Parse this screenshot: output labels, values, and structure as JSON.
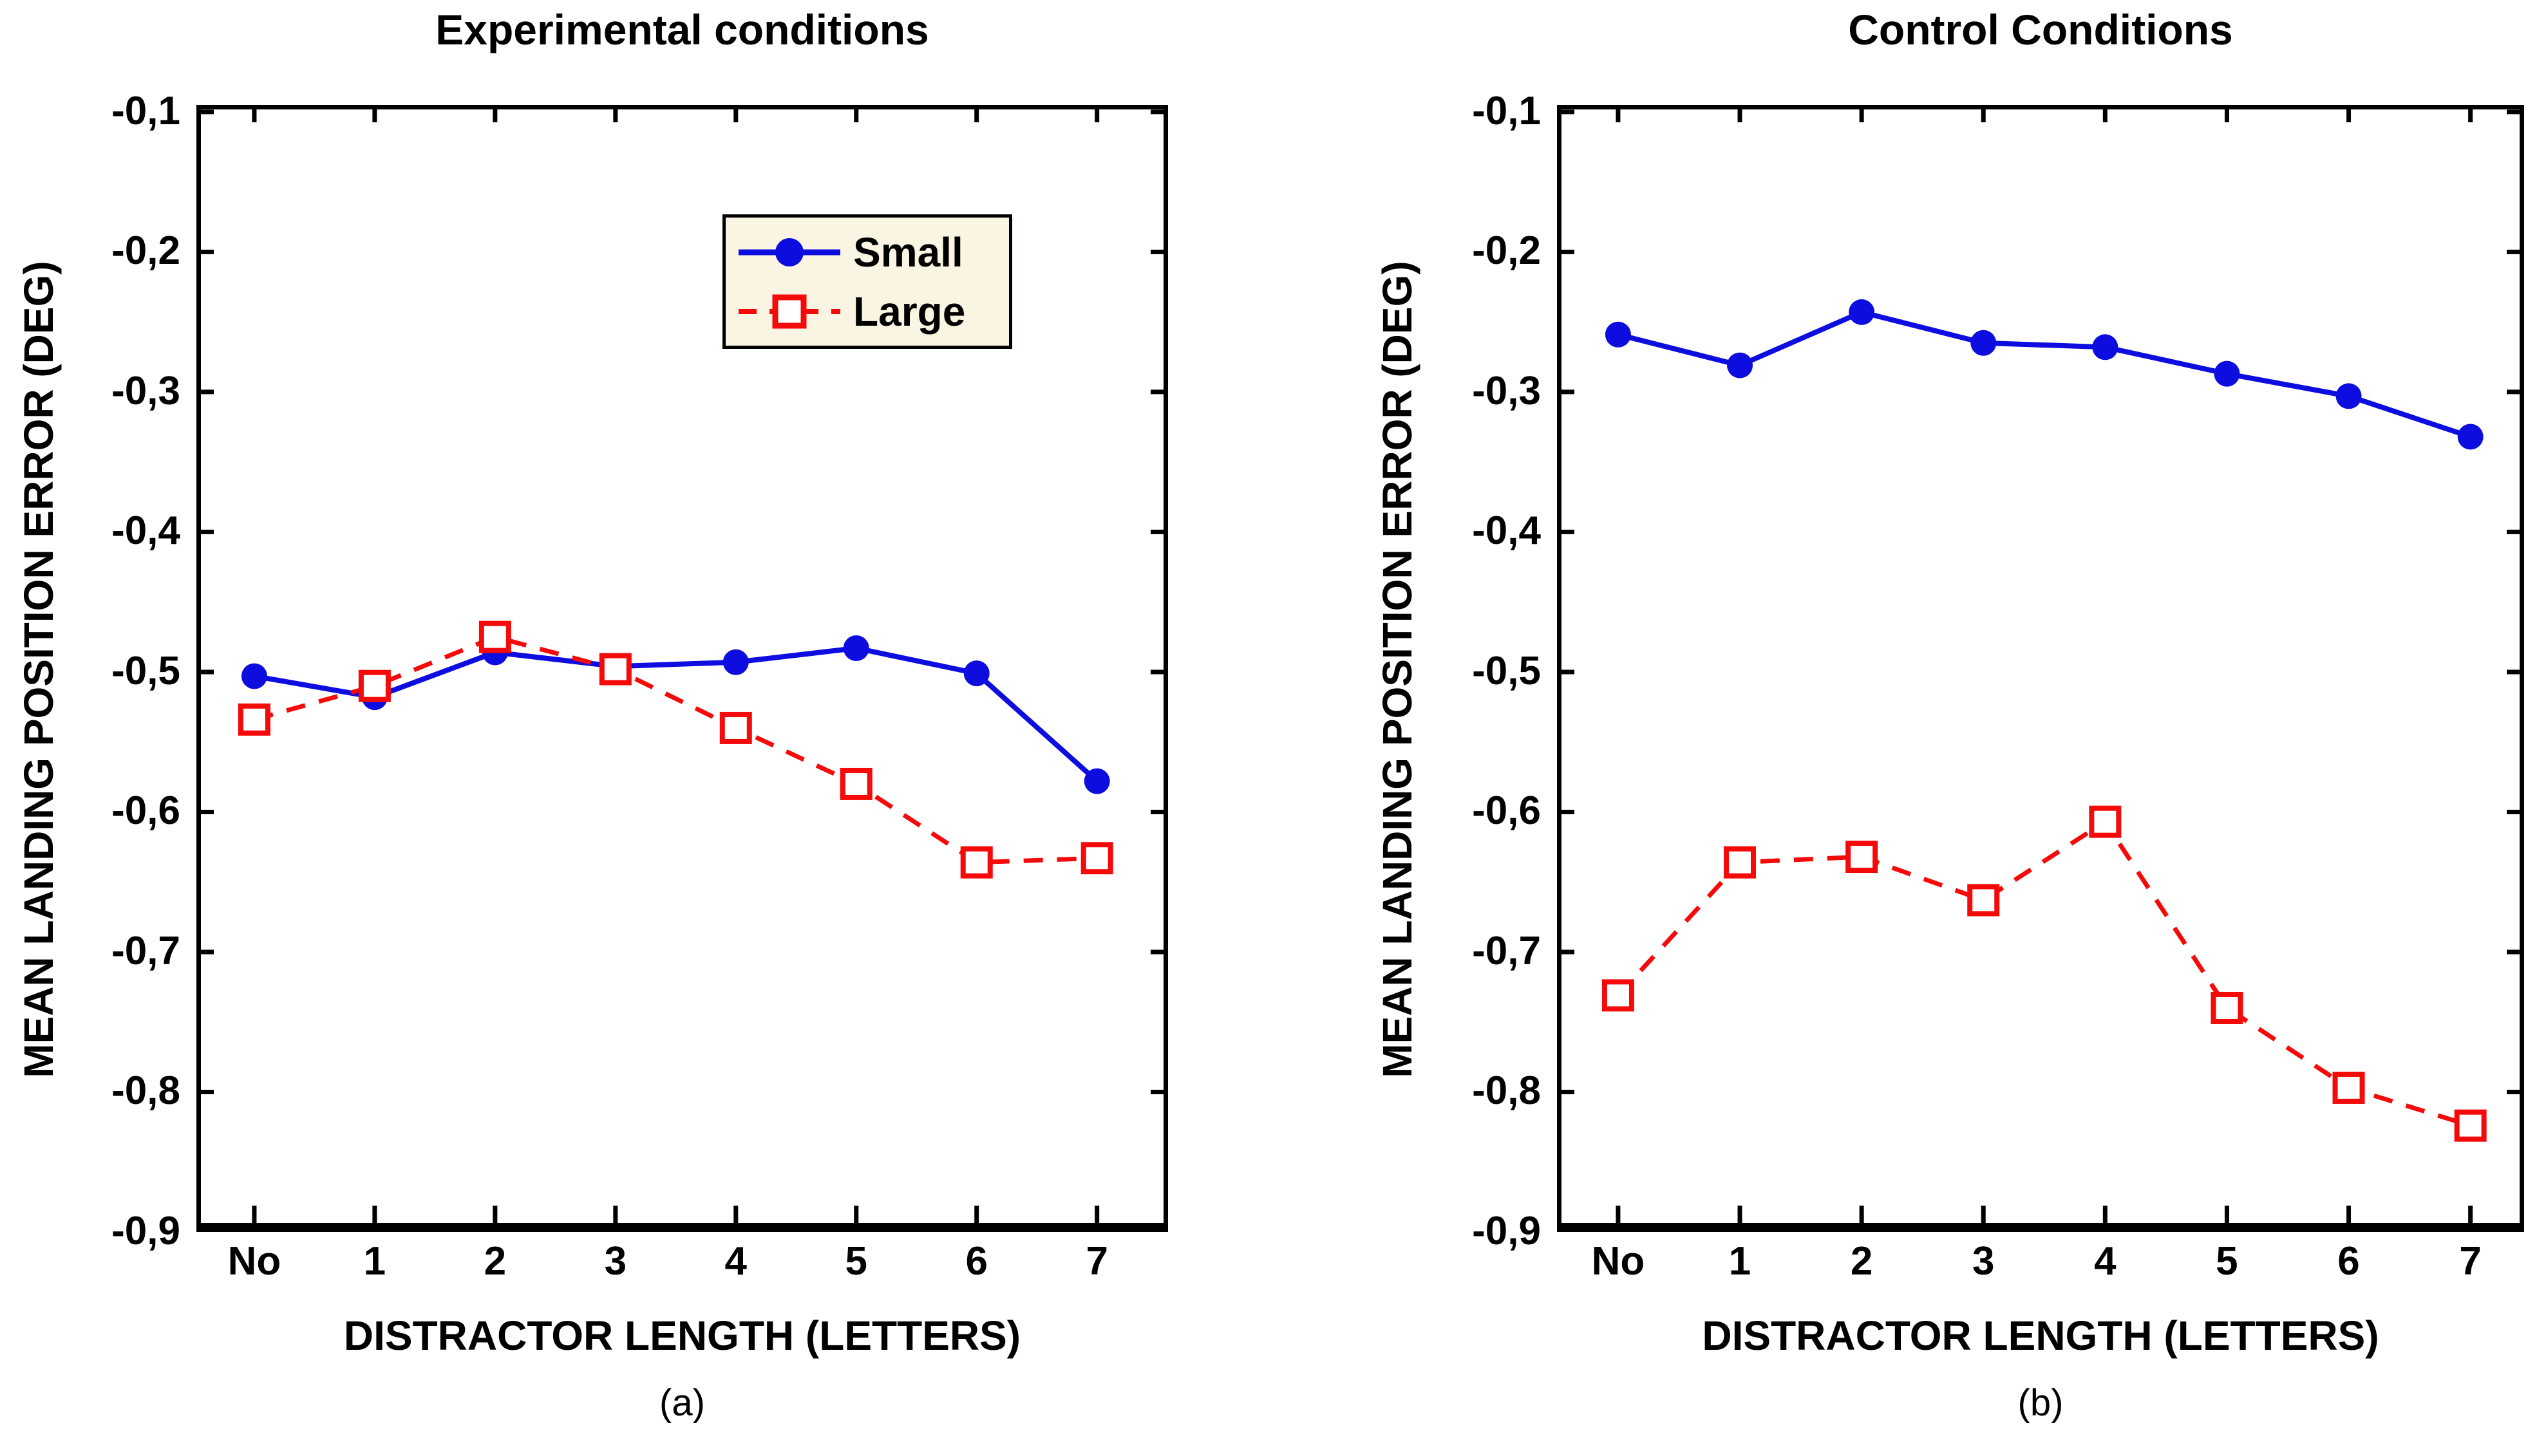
{
  "figure": {
    "y_axis_label": "MEAN LANDING POSITION ERROR (DEG)",
    "x_axis_label": "DISTRACTOR LENGTH (LETTERS)",
    "y_tick_labels": [
      "-0,1",
      "-0,2",
      "-0,3",
      "-0,4",
      "-0,5",
      "-0,6",
      "-0,7",
      "-0,8",
      "-0,9"
    ],
    "x_tick_labels": [
      "No",
      "1",
      "2",
      "3",
      "4",
      "5",
      "6",
      "7"
    ],
    "colors": {
      "small_series": "#0d0de0",
      "large_series": "#f50a0a",
      "legend_background": "#faf4e2",
      "frame": "#000000",
      "background": "#ffffff"
    }
  },
  "legend": {
    "items": [
      {
        "label": "Small",
        "marker": "filled-circle",
        "line": "solid"
      },
      {
        "label": "Large",
        "marker": "open-square",
        "line": "dashed"
      }
    ]
  },
  "chart_data": [
    {
      "type": "line",
      "title": "Experimental conditions",
      "panel_caption": "(a)",
      "xlabel": "DISTRACTOR LENGTH (LETTERS)",
      "ylabel": "MEAN LANDING POSITION ERROR (DEG)",
      "categories": [
        "No",
        "1",
        "2",
        "3",
        "4",
        "5",
        "6",
        "7"
      ],
      "ylim": [
        -0.9,
        -0.1
      ],
      "y_ticks": [
        -0.1,
        -0.2,
        -0.3,
        -0.4,
        -0.5,
        -0.6,
        -0.7,
        -0.8,
        -0.9
      ],
      "grid": false,
      "legend_position": "inside-top-right",
      "series": [
        {
          "name": "Small",
          "style": "solid",
          "marker": "filled-circle",
          "color": "#0d0de0",
          "values": [
            -0.503,
            -0.518,
            -0.486,
            -0.496,
            -0.493,
            -0.483,
            -0.501,
            -0.578
          ]
        },
        {
          "name": "Large",
          "style": "dashed",
          "marker": "open-square",
          "color": "#f50a0a",
          "values": [
            -0.534,
            -0.51,
            -0.475,
            -0.498,
            -0.54,
            -0.58,
            -0.636,
            -0.633
          ]
        }
      ]
    },
    {
      "type": "line",
      "title": "Control Conditions",
      "panel_caption": "(b)",
      "xlabel": "DISTRACTOR LENGTH (LETTERS)",
      "ylabel": "MEAN LANDING POSITION ERROR (DEG)",
      "categories": [
        "No",
        "1",
        "2",
        "3",
        "4",
        "5",
        "6",
        "7"
      ],
      "ylim": [
        -0.9,
        -0.1
      ],
      "y_ticks": [
        -0.1,
        -0.2,
        -0.3,
        -0.4,
        -0.5,
        -0.6,
        -0.7,
        -0.8,
        -0.9
      ],
      "grid": false,
      "legend_position": "none",
      "series": [
        {
          "name": "Small",
          "style": "solid",
          "marker": "filled-circle",
          "color": "#0d0de0",
          "values": [
            -0.259,
            -0.281,
            -0.243,
            -0.265,
            -0.268,
            -0.287,
            -0.303,
            -0.332
          ]
        },
        {
          "name": "Large",
          "style": "dashed",
          "marker": "open-square",
          "color": "#f50a0a",
          "values": [
            -0.731,
            -0.636,
            -0.632,
            -0.663,
            -0.607,
            -0.74,
            -0.797,
            -0.824
          ]
        }
      ]
    }
  ]
}
